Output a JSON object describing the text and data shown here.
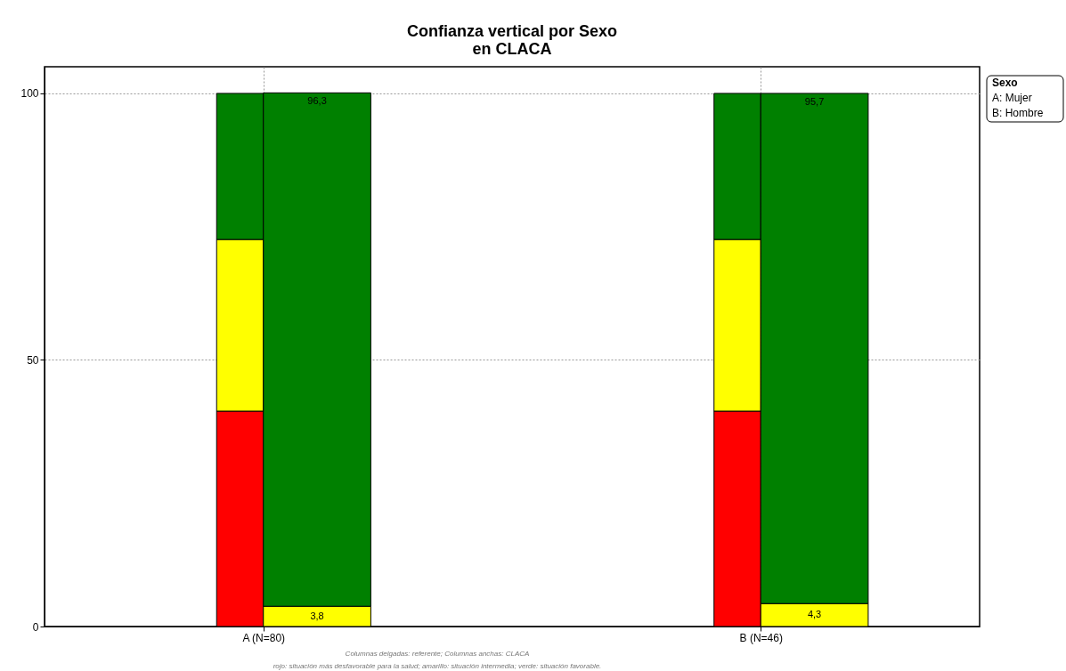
{
  "chart_data": {
    "type": "bar",
    "title": [
      "Confianza vertical por Sexo",
      "en CLACA"
    ],
    "categories": [
      "A (N=80)",
      "B (N=46)"
    ],
    "series": [
      {
        "color": "#ff0000",
        "base": [
          0,
          0
        ],
        "values": [
          40.4,
          40.4
        ]
      },
      {
        "color": "#ffff00",
        "base": [
          40.4,
          40.4
        ],
        "values": [
          32.2,
          32.2
        ]
      },
      {
        "color": "#008000",
        "base": [
          72.6,
          72.6
        ],
        "values": [
          27.4,
          27.4
        ]
      },
      {
        "color": "#ffff00",
        "base": [
          0,
          0
        ],
        "values": [
          3.8,
          4.3
        ],
        "value_labels": [
          "3,8",
          "4,3"
        ]
      },
      {
        "color": "#008000",
        "base": [
          3.8,
          4.3
        ],
        "values": [
          96.3,
          95.7
        ],
        "value_labels": [
          "96,3",
          "95,7"
        ]
      }
    ],
    "ylim": [
      0,
      105
    ],
    "yticks": [
      0,
      50,
      100
    ],
    "grid": true,
    "legend_title": "Sexo",
    "annotations": [
      "A: Mujer",
      "B: Hombre",
      "Columnas delgadas: referente; Columnas anchas: CLACA",
      "rojo: situación más desfavorable para la salud; amarillo: situación intermedia; verde: situación favorable."
    ]
  }
}
